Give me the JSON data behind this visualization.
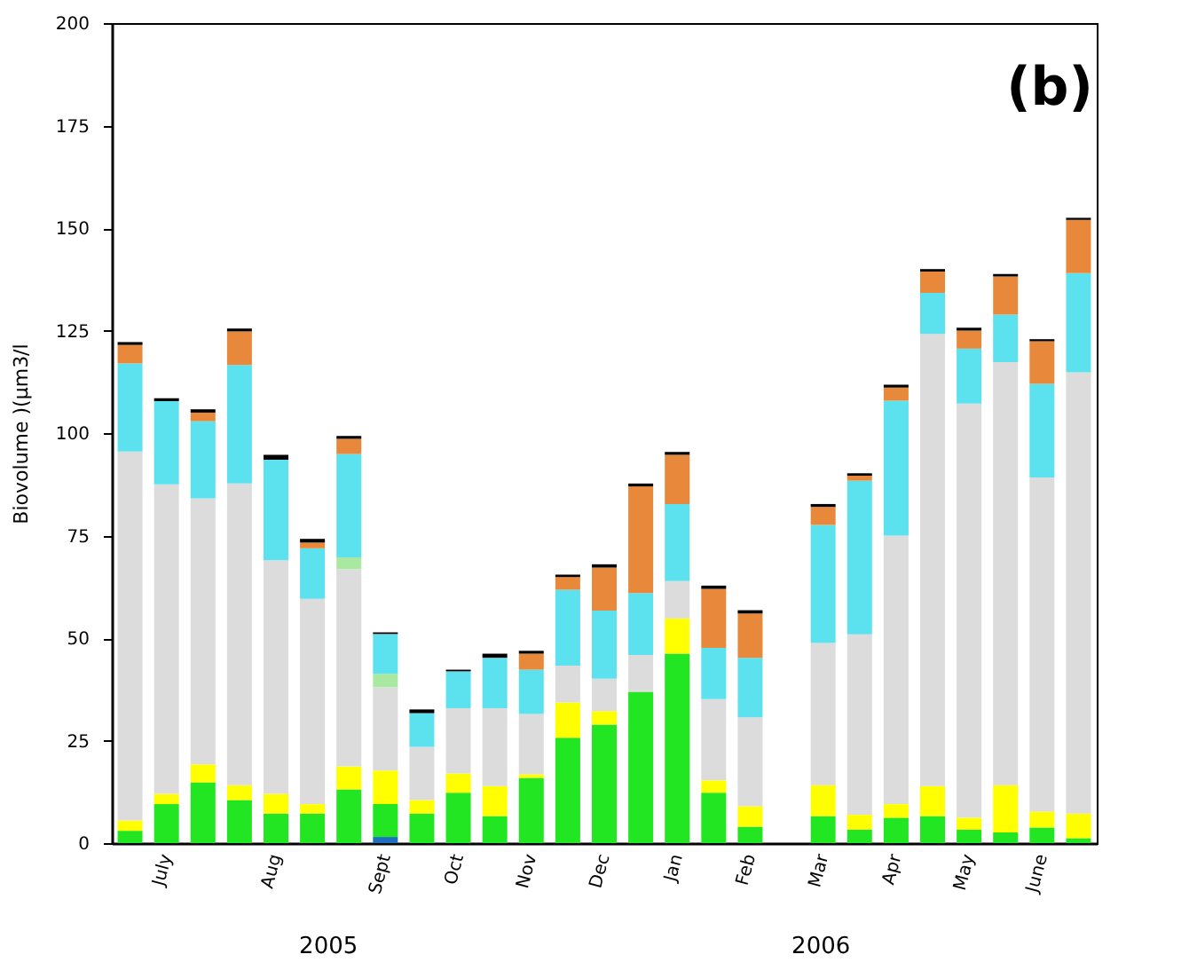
{
  "chart_data": {
    "type": "bar",
    "stacked": true,
    "title": "(b)",
    "ylabel": "Biovolume )(µm3/l",
    "annotations": [
      "2005",
      "2006"
    ],
    "categories": [
      null,
      "July",
      null,
      null,
      "Aug",
      null,
      null,
      "Sept",
      null,
      "Oct",
      null,
      "Nov",
      null,
      "Dec",
      null,
      "Jan",
      null,
      "Feb",
      null,
      "Mar",
      null,
      "Apr",
      null,
      "May",
      null,
      "June",
      null
    ],
    "ylim": [
      0,
      200
    ],
    "yticks": [
      0,
      25,
      50,
      75,
      100,
      125,
      150,
      175,
      200
    ],
    "grid": false,
    "legend": false,
    "series": [
      {
        "color": "#1f6fbf",
        "values": [
          0,
          0,
          0,
          0,
          0,
          0,
          0,
          1.5,
          0,
          0,
          0,
          0,
          0,
          0,
          0,
          0,
          0,
          0,
          null,
          0,
          0,
          0,
          0,
          0,
          0,
          0,
          0
        ]
      },
      {
        "color": "#22e622",
        "values": [
          3,
          9.5,
          14.8,
          10.5,
          7.2,
          7.2,
          13.1,
          8,
          7.2,
          12.3,
          6.6,
          15.9,
          25.7,
          28.9,
          36.9,
          46.2,
          12.3,
          4,
          null,
          6.6,
          3.3,
          6.2,
          6.6,
          3.3,
          2.6,
          3.8,
          1.2
        ]
      },
      {
        "color": "#ffff00",
        "values": [
          2.5,
          2.5,
          4.4,
          3.6,
          4.8,
          2.3,
          5.6,
          8.2,
          3.3,
          4.7,
          7.3,
          0.9,
          8.6,
          3.3,
          0,
          8.6,
          3,
          5,
          null,
          7.5,
          3.6,
          3.3,
          7.3,
          2.9,
          11.5,
          3.9,
          6
        ]
      },
      {
        "color": "#dcdcdc",
        "values": [
          90,
          75.5,
          64.9,
          73.6,
          57,
          50.1,
          48.1,
          20.3,
          13,
          15.9,
          19,
          14.7,
          9,
          7.9,
          9,
          9.1,
          19.8,
          21.7,
          null,
          34.7,
          44,
          65.5,
          110.3,
          101,
          103.2,
          81.5,
          107.6
        ]
      },
      {
        "color": "#a8e8a0",
        "values": [
          0,
          0,
          0,
          0,
          0,
          0,
          2.9,
          3.3,
          0,
          0,
          0,
          0,
          0,
          0,
          0,
          0,
          0,
          0,
          null,
          0,
          0,
          0,
          0,
          0,
          0,
          0,
          0
        ]
      },
      {
        "color": "#5ce1ee",
        "values": [
          21.5,
          20.3,
          18.8,
          28.9,
          24.5,
          12.3,
          25.2,
          9.7,
          8.2,
          9,
          12.3,
          10.8,
          18.5,
          16.6,
          15.1,
          18.8,
          12.5,
          14.5,
          null,
          28.8,
          37.5,
          32.9,
          10,
          13.4,
          11.6,
          22.8,
          24.2
        ]
      },
      {
        "color": "#e8883a",
        "values": [
          4.5,
          0,
          2.1,
          8.2,
          0,
          1.4,
          3.7,
          0,
          0,
          0,
          0,
          3.9,
          3.1,
          10.5,
          26,
          12,
          14.4,
          10.8,
          null,
          4.4,
          1.2,
          3.2,
          5.2,
          4.4,
          9.3,
          10.4,
          13
        ]
      },
      {
        "color": "#000000",
        "values": [
          0.7,
          0.7,
          0.8,
          0.7,
          1.2,
          0.9,
          0.7,
          0.4,
          0.9,
          0.4,
          1,
          0.7,
          0.6,
          0.8,
          0.7,
          0.7,
          0.8,
          0.8,
          null,
          0.7,
          0.6,
          0.7,
          0.6,
          0.7,
          0.6,
          0.5,
          0.5
        ]
      }
    ]
  }
}
